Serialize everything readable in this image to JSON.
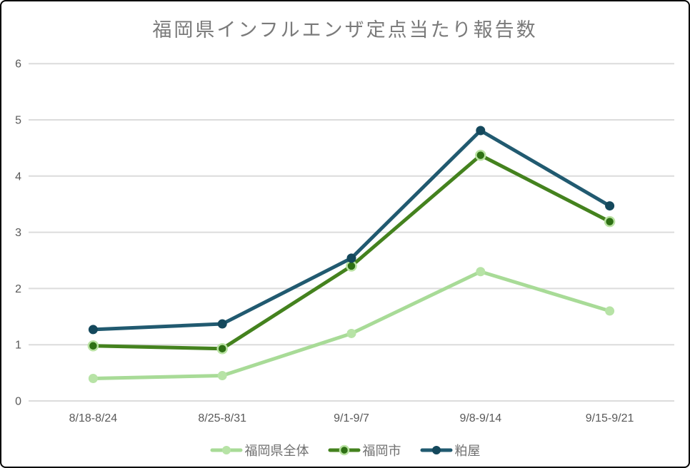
{
  "chart_data": {
    "type": "line",
    "title": "福岡県インフルエンザ定点当たり報告数",
    "categories": [
      "8/18-8/24",
      "8/25-8/31",
      "9/1-9/7",
      "9/8-9/14",
      "9/15-9/21"
    ],
    "series": [
      {
        "id": "fukuoka-prefecture-total",
        "name": "福岡県全体",
        "line_color": "#A8DB97",
        "marker_color": "#B7E3A6",
        "marker_ring_color": null,
        "values": [
          0.4,
          0.45,
          1.2,
          2.3,
          1.6
        ]
      },
      {
        "id": "fukuoka-city",
        "name": "福岡市",
        "line_color": "#44821E",
        "marker_color": "#2E7014",
        "marker_ring_color": "#B9E2A2",
        "values": [
          0.98,
          0.93,
          2.4,
          4.37,
          3.19
        ]
      },
      {
        "id": "kasuya",
        "name": "粕屋",
        "line_color": "#215A70",
        "marker_color": "#14485C",
        "marker_ring_color": null,
        "values": [
          1.27,
          1.37,
          2.54,
          4.81,
          3.47
        ]
      }
    ],
    "xlabel": "",
    "ylabel": "",
    "ylim": [
      0,
      6
    ],
    "y_ticks": [
      0,
      1,
      2,
      3,
      4,
      5,
      6
    ],
    "grid": "horizontal",
    "gridline_color": "#DCDCDC",
    "axis_label_color": "#595959",
    "title_color": "#7A7A7A",
    "legend_position": "bottom",
    "legend_label_color": "#707070",
    "background_color": "#FFFFFF",
    "frame_border_color": "#000000"
  }
}
